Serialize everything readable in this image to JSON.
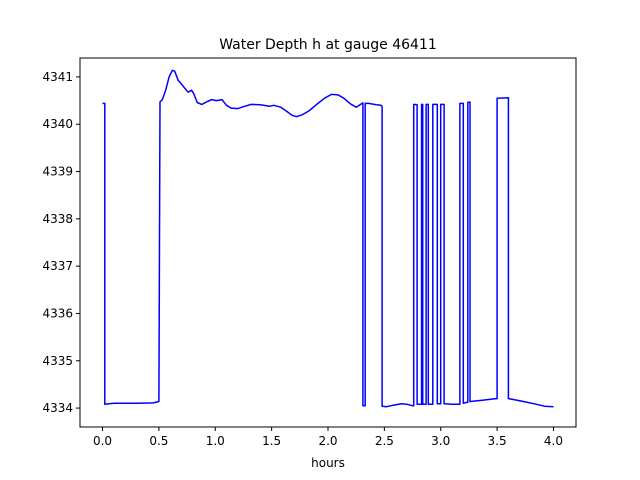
{
  "chart_data": {
    "type": "line",
    "title": "Water Depth h at gauge 46411",
    "xlabel": "hours",
    "ylabel": "",
    "xlim": [
      -0.2,
      4.2
    ],
    "ylim": [
      4333.6,
      4341.4
    ],
    "xticks": [
      0.0,
      0.5,
      1.0,
      1.5,
      2.0,
      2.5,
      3.0,
      3.5,
      4.0
    ],
    "xtick_labels": [
      "0.0",
      "0.5",
      "1.0",
      "1.5",
      "2.0",
      "2.5",
      "3.0",
      "3.5",
      "4.0"
    ],
    "yticks": [
      4334,
      4335,
      4336,
      4337,
      4338,
      4339,
      4340,
      4341
    ],
    "ytick_labels": [
      "4334",
      "4335",
      "4336",
      "4337",
      "4338",
      "4339",
      "4340",
      "4341"
    ],
    "grid": false,
    "series": [
      {
        "color": "#0000ff",
        "points": [
          [
            0.0,
            4340.44
          ],
          [
            0.02,
            4340.44
          ],
          [
            0.02,
            4334.08
          ],
          [
            0.1,
            4334.1
          ],
          [
            0.3,
            4334.1
          ],
          [
            0.45,
            4334.11
          ],
          [
            0.5,
            4334.14
          ],
          [
            0.51,
            4340.47
          ],
          [
            0.53,
            4340.52
          ],
          [
            0.56,
            4340.72
          ],
          [
            0.59,
            4341.0
          ],
          [
            0.62,
            4341.14
          ],
          [
            0.64,
            4341.12
          ],
          [
            0.67,
            4340.93
          ],
          [
            0.71,
            4340.82
          ],
          [
            0.73,
            4340.76
          ],
          [
            0.76,
            4340.68
          ],
          [
            0.79,
            4340.72
          ],
          [
            0.81,
            4340.64
          ],
          [
            0.84,
            4340.46
          ],
          [
            0.88,
            4340.42
          ],
          [
            0.93,
            4340.48
          ],
          [
            0.97,
            4340.52
          ],
          [
            1.01,
            4340.5
          ],
          [
            1.06,
            4340.52
          ],
          [
            1.1,
            4340.4
          ],
          [
            1.14,
            4340.34
          ],
          [
            1.2,
            4340.33
          ],
          [
            1.26,
            4340.38
          ],
          [
            1.32,
            4340.42
          ],
          [
            1.4,
            4340.41
          ],
          [
            1.48,
            4340.38
          ],
          [
            1.52,
            4340.4
          ],
          [
            1.58,
            4340.36
          ],
          [
            1.63,
            4340.28
          ],
          [
            1.68,
            4340.19
          ],
          [
            1.72,
            4340.16
          ],
          [
            1.77,
            4340.2
          ],
          [
            1.83,
            4340.28
          ],
          [
            1.9,
            4340.42
          ],
          [
            1.97,
            4340.55
          ],
          [
            2.03,
            4340.63
          ],
          [
            2.09,
            4340.62
          ],
          [
            2.14,
            4340.55
          ],
          [
            2.2,
            4340.43
          ],
          [
            2.25,
            4340.36
          ],
          [
            2.31,
            4340.45
          ],
          [
            2.31,
            4334.05
          ],
          [
            2.33,
            4334.05
          ],
          [
            2.33,
            4340.44
          ],
          [
            2.36,
            4340.44
          ],
          [
            2.43,
            4340.41
          ],
          [
            2.47,
            4340.4
          ],
          [
            2.48,
            4340.38
          ],
          [
            2.48,
            4334.04
          ],
          [
            2.52,
            4334.03
          ],
          [
            2.58,
            4334.06
          ],
          [
            2.65,
            4334.09
          ],
          [
            2.7,
            4334.08
          ],
          [
            2.75,
            4334.05
          ],
          [
            2.76,
            4334.05
          ],
          [
            2.76,
            4340.42
          ],
          [
            2.79,
            4340.41
          ],
          [
            2.79,
            4334.08
          ],
          [
            2.83,
            4334.08
          ],
          [
            2.83,
            4340.42
          ],
          [
            2.84,
            4340.42
          ],
          [
            2.84,
            4334.08
          ],
          [
            2.87,
            4334.08
          ],
          [
            2.87,
            4340.42
          ],
          [
            2.89,
            4340.42
          ],
          [
            2.89,
            4334.08
          ],
          [
            2.93,
            4334.08
          ],
          [
            2.93,
            4340.42
          ],
          [
            2.97,
            4340.42
          ],
          [
            2.97,
            4334.09
          ],
          [
            3.0,
            4334.09
          ],
          [
            3.0,
            4340.42
          ],
          [
            3.03,
            4340.42
          ],
          [
            3.03,
            4334.09
          ],
          [
            3.1,
            4334.08
          ],
          [
            3.16,
            4334.08
          ],
          [
            3.17,
            4334.08
          ],
          [
            3.17,
            4340.44
          ],
          [
            3.2,
            4340.44
          ],
          [
            3.2,
            4334.1
          ],
          [
            3.23,
            4334.12
          ],
          [
            3.24,
            4334.12
          ],
          [
            3.24,
            4340.46
          ],
          [
            3.26,
            4340.47
          ],
          [
            3.26,
            4334.14
          ],
          [
            3.35,
            4334.16
          ],
          [
            3.49,
            4334.2
          ],
          [
            3.5,
            4334.2
          ],
          [
            3.5,
            4340.55
          ],
          [
            3.6,
            4340.56
          ],
          [
            3.6,
            4334.2
          ],
          [
            3.65,
            4334.18
          ],
          [
            3.75,
            4334.13
          ],
          [
            3.85,
            4334.08
          ],
          [
            3.92,
            4334.04
          ],
          [
            4.0,
            4334.03
          ]
        ]
      }
    ]
  }
}
